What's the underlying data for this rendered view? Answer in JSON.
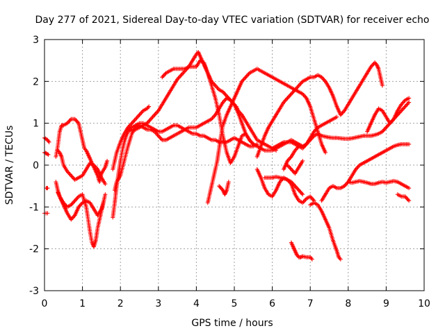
{
  "chart_data": {
    "type": "scatter",
    "title": "Day 277 of 2021, Sidereal Day-to-day VTEC variation (SDTVAR) for receiver echo",
    "xlabel": "GPS time / hours",
    "ylabel": "SDTVAR / TECUs",
    "xlim": [
      0,
      10
    ],
    "ylim": [
      -3,
      3
    ],
    "x_ticks": [
      "0",
      "1",
      "2",
      "3",
      "4",
      "5",
      "6",
      "7",
      "8",
      "9",
      "10"
    ],
    "y_ticks": [
      "-3",
      "-2",
      "-1",
      "0",
      "1",
      "2",
      "3"
    ],
    "grid": true,
    "marker": "+",
    "color": "#ff0000",
    "tracks": [
      {
        "x": [
          0.0,
          0.08,
          0.12
        ],
        "y": [
          0.65,
          0.6,
          0.55
        ]
      },
      {
        "x": [
          0.0,
          0.05,
          0.1
        ],
        "y": [
          0.3,
          0.28,
          0.25
        ]
      },
      {
        "x": [
          0.0,
          0.08
        ],
        "y": [
          -1.15,
          -1.15
        ]
      },
      {
        "x": [
          0.05,
          0.08
        ],
        "y": [
          -0.55,
          -0.55
        ]
      },
      {
        "x": [
          0.3,
          0.35,
          0.4,
          0.45,
          0.5,
          0.6,
          0.7,
          0.8,
          0.9,
          1.0,
          1.05,
          1.1,
          1.15,
          1.2,
          1.3,
          1.4,
          1.45,
          1.5,
          1.6,
          1.65
        ],
        "y": [
          0.2,
          0.45,
          0.8,
          0.95,
          0.95,
          1.0,
          1.1,
          1.1,
          1.0,
          0.6,
          0.4,
          0.35,
          0.25,
          0.15,
          -0.05,
          -0.25,
          -0.4,
          -0.2,
          -0.05,
          0.1
        ]
      },
      {
        "x": [
          0.35,
          0.4,
          0.45,
          0.5,
          0.6,
          0.7,
          0.8,
          0.9,
          1.0,
          1.1,
          1.2,
          1.3,
          1.4,
          1.5,
          1.6
        ],
        "y": [
          0.35,
          0.3,
          0.2,
          0.0,
          -0.15,
          -0.25,
          -0.35,
          -0.3,
          -0.25,
          -0.1,
          0.05,
          0.0,
          -0.1,
          -0.3,
          -0.45
        ]
      },
      {
        "x": [
          0.3,
          0.35,
          0.4,
          0.45,
          0.5,
          0.6,
          0.7,
          0.8,
          0.9,
          1.0,
          1.1,
          1.2,
          1.3,
          1.4,
          1.5,
          1.55
        ],
        "y": [
          -0.4,
          -0.6,
          -0.75,
          -0.85,
          -0.95,
          -1.15,
          -1.3,
          -1.2,
          -1.0,
          -0.9,
          -0.85,
          -0.9,
          -1.05,
          -1.2,
          -1.05,
          -0.9
        ]
      },
      {
        "x": [
          0.35,
          0.4,
          0.5,
          0.6,
          0.7,
          0.8,
          0.9,
          1.0,
          1.1,
          1.2,
          1.25,
          1.3,
          1.35,
          1.4,
          1.45,
          1.5,
          1.55,
          1.6
        ],
        "y": [
          -0.65,
          -0.75,
          -0.9,
          -1.0,
          -0.95,
          -0.85,
          -0.75,
          -0.7,
          -1.0,
          -1.6,
          -1.85,
          -1.95,
          -1.8,
          -1.5,
          -1.3,
          -1.1,
          -0.9,
          -0.7
        ]
      },
      {
        "x": [
          1.8,
          1.85,
          1.9,
          1.95,
          2.0,
          2.05,
          2.1,
          2.15,
          2.2,
          2.3,
          2.4,
          2.5,
          2.6,
          2.7,
          2.8,
          2.9,
          3.0,
          3.1,
          3.2,
          3.3,
          3.4,
          3.5,
          3.6,
          3.7,
          3.8,
          3.9,
          4.0,
          4.05,
          4.1,
          4.2,
          4.3,
          4.4,
          4.5,
          4.6,
          4.7,
          4.8,
          4.9,
          5.0,
          5.05,
          5.1,
          5.2,
          5.3,
          5.4,
          5.5,
          5.6,
          5.7,
          5.8,
          5.9,
          6.0,
          6.1
        ],
        "y": [
          -1.25,
          -0.9,
          -0.5,
          -0.2,
          0.1,
          0.35,
          0.55,
          0.7,
          0.8,
          0.85,
          0.85,
          0.9,
          0.95,
          1.0,
          1.1,
          1.2,
          1.3,
          1.45,
          1.6,
          1.75,
          1.9,
          2.05,
          2.15,
          2.25,
          2.35,
          2.5,
          2.65,
          2.7,
          2.6,
          2.4,
          2.2,
          2.0,
          1.9,
          1.8,
          1.75,
          1.65,
          1.55,
          1.45,
          1.4,
          1.3,
          1.2,
          1.05,
          0.9,
          0.75,
          0.6,
          0.55,
          0.5,
          0.45,
          0.4,
          0.35
        ]
      },
      {
        "x": [
          1.85,
          1.9,
          2.0,
          2.1,
          2.2,
          2.3,
          2.4,
          2.5,
          2.6,
          2.7,
          2.8,
          2.9,
          3.0,
          3.1,
          3.2,
          3.3,
          3.4,
          3.5,
          3.6,
          3.7,
          3.8,
          3.9,
          4.0,
          4.1,
          4.2,
          4.3,
          4.4,
          4.5,
          4.6,
          4.7,
          4.8,
          4.9,
          5.0,
          5.1,
          5.2,
          5.3,
          5.4,
          5.5
        ],
        "y": [
          -0.6,
          -0.4,
          -0.25,
          0.1,
          0.45,
          0.75,
          0.9,
          0.95,
          0.9,
          0.85,
          0.85,
          0.8,
          0.7,
          0.6,
          0.6,
          0.65,
          0.7,
          0.75,
          0.8,
          0.85,
          0.9,
          0.9,
          0.9,
          0.95,
          1.0,
          1.05,
          1.1,
          1.2,
          1.35,
          1.5,
          1.6,
          1.55,
          1.45,
          1.25,
          1.0,
          0.75,
          0.6,
          0.5
        ]
      },
      {
        "x": [
          1.8,
          1.85,
          1.9,
          2.0,
          2.1,
          2.2,
          2.3,
          2.4,
          2.5,
          2.6,
          2.7,
          2.75
        ],
        "y": [
          -0.1,
          0.1,
          0.3,
          0.55,
          0.75,
          0.9,
          1.0,
          1.1,
          1.2,
          1.3,
          1.35,
          1.4
        ]
      },
      {
        "x": [
          2.2,
          2.3,
          2.4,
          2.5,
          2.6,
          2.7,
          2.8,
          2.9,
          3.0,
          3.1,
          3.2,
          3.3,
          3.4,
          3.5,
          3.6,
          3.7,
          3.8,
          3.9,
          4.0,
          4.1,
          4.2,
          4.3,
          4.4,
          4.5,
          4.6,
          4.7,
          4.8,
          4.9,
          5.0,
          5.1,
          5.2,
          5.3,
          5.4,
          5.5,
          5.6
        ],
        "y": [
          0.85,
          0.9,
          0.95,
          1.0,
          1.0,
          0.95,
          0.9,
          0.85,
          0.8,
          0.8,
          0.85,
          0.9,
          0.95,
          0.95,
          0.9,
          0.85,
          0.8,
          0.75,
          0.75,
          0.7,
          0.7,
          0.65,
          0.6,
          0.6,
          0.55,
          0.55,
          0.55,
          0.6,
          0.65,
          0.6,
          0.55,
          0.5,
          0.45,
          0.45,
          0.5
        ]
      },
      {
        "x": [
          3.1,
          3.2,
          3.3,
          3.4,
          3.5,
          3.6,
          3.7,
          3.8,
          3.9,
          4.0,
          4.1,
          4.2,
          4.3,
          4.4,
          4.5,
          4.6,
          4.7,
          4.8,
          4.9,
          5.0,
          5.1,
          5.2,
          5.3,
          5.4,
          5.5,
          5.6,
          5.7,
          5.8,
          5.9,
          6.0,
          6.1,
          6.2,
          6.3,
          6.4,
          6.5,
          6.6,
          6.7,
          6.8,
          6.9,
          7.0,
          7.1,
          7.2,
          7.3,
          7.4,
          7.5,
          7.6,
          7.7
        ],
        "y": [
          2.1,
          2.2,
          2.25,
          2.3,
          2.3,
          2.3,
          2.3,
          2.35,
          2.35,
          2.35,
          2.5,
          2.45,
          2.2,
          1.9,
          1.6,
          1.2,
          0.7,
          0.3,
          0.05,
          0.2,
          0.45,
          0.7,
          0.75,
          0.6,
          0.5,
          0.45,
          0.4,
          0.35,
          0.35,
          0.35,
          0.4,
          0.45,
          0.5,
          0.55,
          0.55,
          0.5,
          0.45,
          0.4,
          0.5,
          0.65,
          0.8,
          0.9,
          0.95,
          1.0,
          1.05,
          1.1,
          1.15
        ]
      },
      {
        "x": [
          4.3,
          4.35,
          4.4,
          4.45,
          4.5,
          4.55,
          4.6,
          4.65,
          4.7,
          4.8,
          4.9,
          5.0,
          5.1,
          5.2,
          5.3,
          5.4,
          5.5,
          5.6,
          5.7,
          5.8,
          5.9,
          6.0,
          6.1,
          6.2,
          6.3,
          6.4,
          6.5,
          6.6,
          6.7,
          6.8,
          6.9,
          7.0,
          7.1,
          7.2,
          7.3,
          7.4
        ],
        "y": [
          -0.9,
          -0.7,
          -0.5,
          -0.3,
          -0.1,
          0.1,
          0.4,
          0.7,
          0.95,
          1.2,
          1.4,
          1.6,
          1.8,
          2.0,
          2.1,
          2.2,
          2.25,
          2.3,
          2.25,
          2.2,
          2.15,
          2.1,
          2.05,
          2.0,
          1.95,
          1.9,
          1.85,
          1.8,
          1.75,
          1.7,
          1.6,
          1.4,
          1.1,
          0.8,
          0.5,
          0.3
        ]
      },
      {
        "x": [
          4.6,
          4.65,
          4.7,
          4.75,
          4.8,
          4.85
        ],
        "y": [
          -0.5,
          -0.55,
          -0.6,
          -0.7,
          -0.6,
          -0.4
        ]
      },
      {
        "x": [
          5.6,
          5.7,
          5.8,
          5.9,
          6.0,
          6.1,
          6.2,
          6.3,
          6.4,
          6.5,
          6.6,
          6.7,
          6.8,
          6.9,
          7.0,
          7.1,
          7.2,
          7.3,
          7.4,
          7.5,
          7.6,
          7.7,
          7.8,
          7.9,
          8.0,
          8.1,
          8.2,
          8.3,
          8.4,
          8.5,
          8.6,
          8.7,
          8.75,
          8.8,
          8.85,
          8.9
        ],
        "y": [
          0.2,
          0.45,
          0.7,
          0.9,
          1.05,
          1.2,
          1.35,
          1.5,
          1.6,
          1.7,
          1.8,
          1.9,
          2.0,
          2.05,
          2.1,
          2.1,
          2.15,
          2.1,
          2.0,
          1.85,
          1.65,
          1.4,
          1.2,
          1.3,
          1.45,
          1.6,
          1.75,
          1.9,
          2.05,
          2.2,
          2.35,
          2.45,
          2.4,
          2.3,
          2.1,
          1.9
        ]
      },
      {
        "x": [
          5.6,
          5.7,
          5.8,
          5.9,
          6.0,
          6.1,
          6.2,
          6.3,
          6.4,
          6.5,
          6.6,
          6.7,
          6.8,
          6.9,
          7.0,
          7.1
        ],
        "y": [
          -0.1,
          -0.3,
          -0.55,
          -0.7,
          -0.75,
          -0.6,
          -0.4,
          -0.3,
          -0.35,
          -0.45,
          -0.7,
          -0.85,
          -0.9,
          -0.8,
          -0.75,
          -0.85
        ]
      },
      {
        "x": [
          5.8,
          5.9,
          6.0,
          6.1,
          6.2,
          6.3,
          6.4,
          6.5,
          6.6,
          6.7,
          6.8
        ],
        "y": [
          -0.3,
          -0.3,
          -0.3,
          -0.28,
          -0.3,
          -0.32,
          -0.35,
          -0.4,
          -0.5,
          -0.6,
          -0.7
        ]
      },
      {
        "x": [
          6.0,
          6.1,
          6.2,
          6.3,
          6.4,
          6.5,
          6.6,
          6.7,
          6.8,
          6.9,
          7.0,
          7.1,
          7.2,
          7.3,
          7.4,
          7.5,
          7.6,
          7.7,
          7.8,
          7.9,
          8.0,
          8.1,
          8.2,
          8.3,
          8.4,
          8.5,
          8.6,
          8.7,
          8.8,
          8.9,
          9.0,
          9.1,
          9.2,
          9.3,
          9.4,
          9.5,
          9.6
        ],
        "y": [
          0.4,
          0.45,
          0.5,
          0.55,
          0.55,
          0.6,
          0.55,
          0.5,
          0.45,
          0.5,
          0.6,
          0.7,
          0.75,
          0.7,
          0.68,
          0.66,
          0.65,
          0.65,
          0.64,
          0.63,
          0.63,
          0.64,
          0.66,
          0.68,
          0.7,
          0.7,
          0.7,
          0.72,
          0.75,
          0.8,
          0.9,
          1.0,
          1.1,
          1.2,
          1.3,
          1.4,
          1.5
        ]
      },
      {
        "x": [
          6.5,
          6.55,
          6.6,
          6.65,
          6.7,
          6.75,
          6.8,
          6.9,
          7.0,
          7.05
        ],
        "y": [
          -1.85,
          -1.95,
          -2.05,
          -2.15,
          -2.2,
          -2.2,
          -2.18,
          -2.2,
          -2.2,
          -2.25
        ]
      },
      {
        "x": [
          7.0,
          7.1,
          7.2,
          7.3,
          7.4,
          7.5,
          7.6,
          7.7,
          7.75,
          7.8
        ],
        "y": [
          -0.95,
          -0.9,
          -0.95,
          -1.1,
          -1.3,
          -1.5,
          -1.8,
          -2.05,
          -2.2,
          -2.25
        ]
      },
      {
        "x": [
          7.3,
          7.4,
          7.5,
          7.6,
          7.7,
          7.8,
          7.9,
          8.0,
          8.1,
          8.2,
          8.3,
          8.4,
          8.5,
          8.6,
          8.7,
          8.8,
          8.9,
          9.0,
          9.1,
          9.2,
          9.3,
          9.4,
          9.5,
          9.6
        ],
        "y": [
          -0.85,
          -0.7,
          -0.55,
          -0.5,
          -0.55,
          -0.55,
          -0.5,
          -0.4,
          -0.25,
          -0.1,
          0.0,
          0.05,
          0.1,
          0.15,
          0.2,
          0.25,
          0.3,
          0.35,
          0.4,
          0.45,
          0.48,
          0.5,
          0.5,
          0.5
        ]
      },
      {
        "x": [
          8.0,
          8.1,
          8.2,
          8.3,
          8.4,
          8.5,
          8.6,
          8.7,
          8.8,
          8.9,
          9.0,
          9.1,
          9.2,
          9.3,
          9.4,
          9.5,
          9.6
        ],
        "y": [
          -0.4,
          -0.42,
          -0.4,
          -0.38,
          -0.4,
          -0.42,
          -0.45,
          -0.45,
          -0.42,
          -0.4,
          -0.42,
          -0.4,
          -0.38,
          -0.4,
          -0.45,
          -0.5,
          -0.55
        ]
      },
      {
        "x": [
          8.5,
          8.6,
          8.7,
          8.8,
          8.9,
          9.0,
          9.1,
          9.2,
          9.3,
          9.4,
          9.5,
          9.6
        ],
        "y": [
          0.8,
          1.0,
          1.2,
          1.35,
          1.3,
          1.15,
          1.0,
          1.1,
          1.3,
          1.45,
          1.55,
          1.6
        ]
      },
      {
        "x": [
          9.3,
          9.4,
          9.5,
          9.55,
          9.6
        ],
        "y": [
          -0.7,
          -0.75,
          -0.75,
          -0.8,
          -0.85
        ]
      },
      {
        "x": [
          6.3,
          6.4,
          6.5,
          6.6,
          6.7
        ],
        "y": [
          -0.1,
          0.1,
          0.2,
          0.35,
          0.45
        ]
      },
      {
        "x": [
          6.4,
          6.5,
          6.6,
          6.7,
          6.8
        ],
        "y": [
          0.0,
          -0.1,
          -0.2,
          -0.05,
          0.1
        ]
      }
    ]
  }
}
